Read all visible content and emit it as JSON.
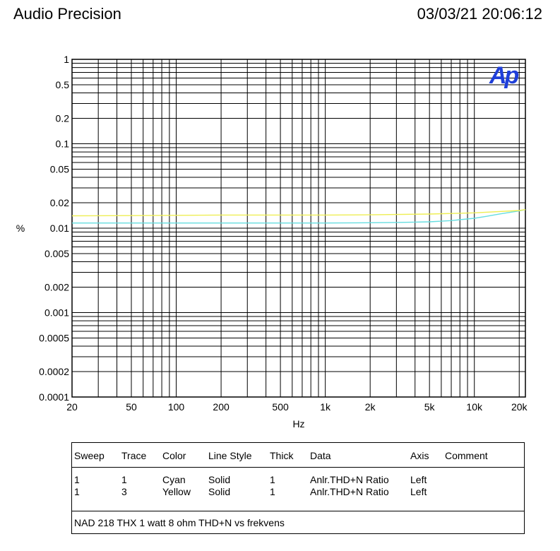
{
  "header": {
    "left": "Audio Precision",
    "right": "03/03/21 20:06:12"
  },
  "logo_text": "Ap",
  "chart_data": {
    "type": "line",
    "title": "",
    "xlabel": "Hz",
    "ylabel": "%",
    "x_scale": "log",
    "y_scale": "log",
    "xlim": [
      20,
      22000
    ],
    "ylim": [
      0.0001,
      1
    ],
    "x_ticks": [
      {
        "v": 20,
        "label": "20"
      },
      {
        "v": 50,
        "label": "50"
      },
      {
        "v": 100,
        "label": "100"
      },
      {
        "v": 200,
        "label": "200"
      },
      {
        "v": 500,
        "label": "500"
      },
      {
        "v": 1000,
        "label": "1k"
      },
      {
        "v": 2000,
        "label": "2k"
      },
      {
        "v": 5000,
        "label": "5k"
      },
      {
        "v": 10000,
        "label": "10k"
      },
      {
        "v": 20000,
        "label": "20k"
      }
    ],
    "y_ticks": [
      {
        "v": 1,
        "label": "1"
      },
      {
        "v": 0.5,
        "label": "0.5"
      },
      {
        "v": 0.2,
        "label": "0.2"
      },
      {
        "v": 0.1,
        "label": "0.1"
      },
      {
        "v": 0.05,
        "label": "0.05"
      },
      {
        "v": 0.02,
        "label": "0.02"
      },
      {
        "v": 0.01,
        "label": "0.01"
      },
      {
        "v": 0.005,
        "label": "0.005"
      },
      {
        "v": 0.002,
        "label": "0.002"
      },
      {
        "v": 0.001,
        "label": "0.001"
      },
      {
        "v": 0.0005,
        "label": "0.0005"
      },
      {
        "v": 0.0002,
        "label": "0.0002"
      },
      {
        "v": 0.0001,
        "label": "0.0001"
      }
    ],
    "grid": true,
    "series": [
      {
        "color": "#66dde0",
        "x": [
          20,
          50,
          100,
          200,
          500,
          1000,
          2000,
          3000,
          4000,
          5000,
          6000,
          7000,
          8000,
          10000,
          12000,
          15000,
          20000,
          22000
        ],
        "y": [
          0.0115,
          0.0115,
          0.0115,
          0.0115,
          0.0115,
          0.0115,
          0.0116,
          0.0117,
          0.0118,
          0.0119,
          0.0121,
          0.0123,
          0.0126,
          0.0131,
          0.0138,
          0.0148,
          0.016,
          0.0166
        ]
      },
      {
        "color": "#eeee55",
        "x": [
          20,
          50,
          100,
          200,
          500,
          1000,
          2000,
          5000,
          10000,
          20000,
          22000
        ],
        "y": [
          0.014,
          0.0141,
          0.0142,
          0.0143,
          0.0143,
          0.0143,
          0.0144,
          0.0147,
          0.0152,
          0.0162,
          0.0166
        ]
      }
    ]
  },
  "legend": {
    "headers": {
      "sweep": "Sweep",
      "trace": "Trace",
      "color": "Color",
      "style": "Line Style",
      "thick": "Thick",
      "data": "Data",
      "axis": "Axis",
      "comment": "Comment"
    },
    "rows": [
      {
        "sweep": "1",
        "trace": "1",
        "color": "Cyan",
        "style": "Solid",
        "thick": "1",
        "data": "Anlr.THD+N Ratio",
        "axis": "Left"
      },
      {
        "sweep": "1",
        "trace": "3",
        "color": "Yellow",
        "style": "Solid",
        "thick": "1",
        "data": "Anlr.THD+N Ratio",
        "axis": "Left"
      }
    ],
    "note": "NAD 218 THX 1 watt 8 ohm THD+N vs frekvens"
  }
}
